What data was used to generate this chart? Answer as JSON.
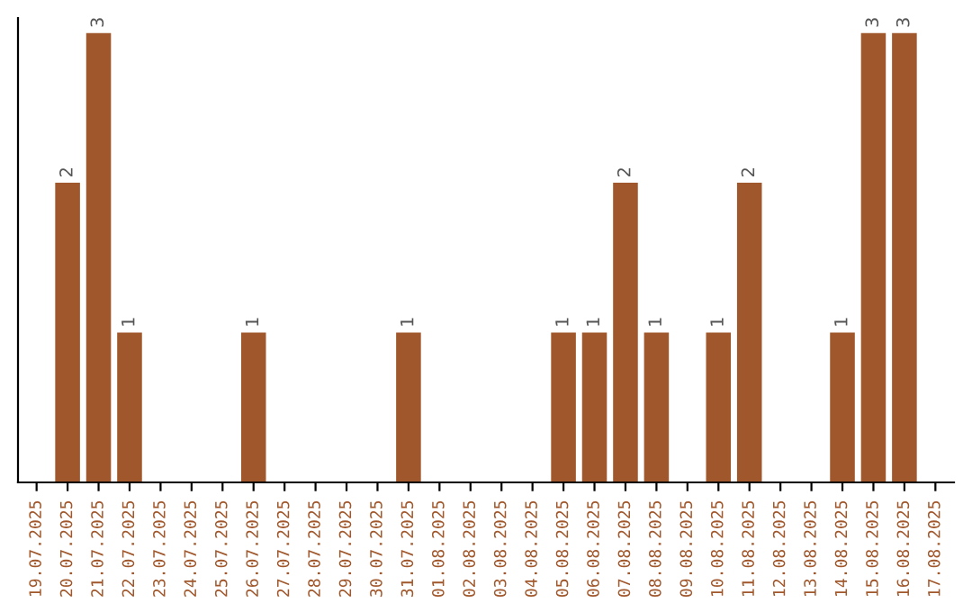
{
  "chart_data": {
    "type": "bar",
    "categories": [
      "19.07.2025",
      "20.07.2025",
      "21.07.2025",
      "22.07.2025",
      "23.07.2025",
      "24.07.2025",
      "25.07.2025",
      "26.07.2025",
      "27.07.2025",
      "28.07.2025",
      "29.07.2025",
      "30.07.2025",
      "31.07.2025",
      "01.08.2025",
      "02.08.2025",
      "03.08.2025",
      "04.08.2025",
      "05.08.2025",
      "06.08.2025",
      "07.08.2025",
      "08.08.2025",
      "09.08.2025",
      "10.08.2025",
      "11.08.2025",
      "12.08.2025",
      "13.08.2025",
      "14.08.2025",
      "15.08.2025",
      "16.08.2025",
      "17.08.2025"
    ],
    "values": [
      0,
      2,
      3,
      1,
      0,
      0,
      0,
      1,
      0,
      0,
      0,
      0,
      1,
      0,
      0,
      0,
      0,
      1,
      1,
      2,
      1,
      0,
      1,
      2,
      0,
      0,
      1,
      3,
      3,
      0
    ],
    "value_labels": [
      null,
      "2",
      "3",
      "1",
      null,
      null,
      null,
      "1",
      null,
      null,
      null,
      null,
      "1",
      null,
      null,
      null,
      null,
      "1",
      "1",
      "2",
      "1",
      null,
      "1",
      "2",
      null,
      null,
      "1",
      "3",
      "3",
      null
    ],
    "color": "#a0572b",
    "ylim": [
      0,
      3.1
    ],
    "tick_labels": "x",
    "grid": false,
    "legend": false
  }
}
